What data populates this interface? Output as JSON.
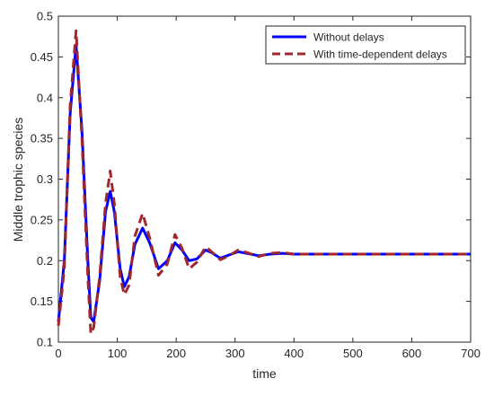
{
  "chart_data": {
    "type": "line",
    "title": "",
    "xlabel": "time",
    "ylabel": "Middle trophic species",
    "xlim": [
      0,
      700
    ],
    "ylim": [
      0.1,
      0.5
    ],
    "x_ticks": [
      0,
      100,
      200,
      300,
      400,
      500,
      600,
      700
    ],
    "x_tick_labels": [
      "0",
      "100",
      "200",
      "300",
      "400",
      "500",
      "600",
      "700"
    ],
    "y_ticks": [
      0.1,
      0.15,
      0.2,
      0.25,
      0.3,
      0.35,
      0.4,
      0.45,
      0.5
    ],
    "y_tick_labels": [
      "0.1",
      "0.15",
      "0.2",
      "0.25",
      "0.3",
      "0.35",
      "0.4",
      "0.45",
      "0.5"
    ],
    "grid": false,
    "legend_position": "top-right",
    "series": [
      {
        "name": "Without delays",
        "color": "#0000ff",
        "style": "solid",
        "x": [
          0,
          10,
          20,
          30,
          40,
          50,
          55,
          60,
          70,
          80,
          88,
          95,
          105,
          112,
          120,
          130,
          143,
          155,
          170,
          185,
          198,
          210,
          222,
          235,
          250,
          260,
          275,
          290,
          305,
          320,
          340,
          360,
          380,
          400,
          430,
          460,
          500,
          550,
          600,
          650,
          700
        ],
        "y": [
          0.125,
          0.2,
          0.38,
          0.465,
          0.36,
          0.2,
          0.13,
          0.125,
          0.175,
          0.26,
          0.285,
          0.26,
          0.19,
          0.168,
          0.18,
          0.22,
          0.24,
          0.222,
          0.19,
          0.2,
          0.222,
          0.213,
          0.2,
          0.202,
          0.213,
          0.21,
          0.203,
          0.207,
          0.211,
          0.209,
          0.206,
          0.208,
          0.209,
          0.208,
          0.208,
          0.208,
          0.208,
          0.208,
          0.208,
          0.208,
          0.208
        ]
      },
      {
        "name": "With time-dependent delays",
        "color": "#a0282d",
        "style": "dashed",
        "x": [
          0,
          10,
          20,
          30,
          40,
          50,
          55,
          60,
          70,
          80,
          88,
          95,
          105,
          112,
          120,
          130,
          143,
          155,
          170,
          185,
          198,
          210,
          222,
          235,
          250,
          260,
          275,
          290,
          305,
          320,
          340,
          360,
          380,
          400,
          430,
          460,
          500,
          550,
          600,
          650,
          700
        ],
        "y": [
          0.12,
          0.19,
          0.39,
          0.482,
          0.35,
          0.18,
          0.11,
          0.118,
          0.18,
          0.27,
          0.31,
          0.27,
          0.18,
          0.158,
          0.17,
          0.23,
          0.258,
          0.228,
          0.182,
          0.196,
          0.232,
          0.215,
          0.19,
          0.198,
          0.217,
          0.211,
          0.201,
          0.206,
          0.213,
          0.21,
          0.205,
          0.209,
          0.21,
          0.208,
          0.208,
          0.208,
          0.208,
          0.208,
          0.208,
          0.208,
          0.208
        ]
      }
    ]
  }
}
